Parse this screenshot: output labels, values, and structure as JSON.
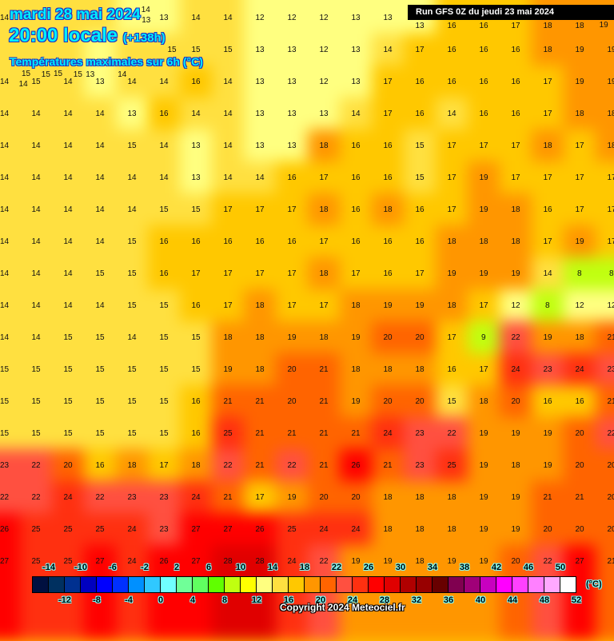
{
  "header": {
    "date": "mardi 28 mai 2024",
    "time": "20:00 locale",
    "lead": "(+138h)",
    "parameter": "Températures maximales sur 6h (°C)",
    "run": "Run GFS 0Z du jeudi 23 mai 2024"
  },
  "map": {
    "unit": "°C",
    "temperature_grid": [
      [
        14,
        15,
        15,
        14,
        13,
        13,
        14,
        14,
        12,
        12,
        12,
        13,
        13,
        13,
        16,
        16,
        17,
        18,
        18,
        19
      ],
      [
        14,
        15,
        15,
        13,
        14,
        15,
        15,
        15,
        13,
        13,
        12,
        13,
        14,
        17,
        16,
        16,
        16,
        18,
        19,
        19
      ],
      [
        14,
        15,
        14,
        13,
        14,
        14,
        16,
        14,
        13,
        13,
        12,
        13,
        17,
        16,
        16,
        16,
        16,
        17,
        19,
        19
      ],
      [
        14,
        14,
        14,
        14,
        13,
        16,
        14,
        14,
        13,
        13,
        13,
        14,
        17,
        16,
        14,
        16,
        16,
        17,
        18,
        18
      ],
      [
        14,
        14,
        14,
        14,
        15,
        14,
        13,
        14,
        13,
        13,
        18,
        16,
        16,
        15,
        17,
        17,
        17,
        18,
        17,
        18
      ],
      [
        14,
        14,
        14,
        14,
        14,
        14,
        13,
        14,
        14,
        16,
        17,
        16,
        16,
        15,
        17,
        19,
        17,
        17,
        17,
        17
      ],
      [
        14,
        14,
        14,
        14,
        14,
        15,
        15,
        17,
        17,
        17,
        18,
        16,
        18,
        16,
        17,
        19,
        18,
        16,
        17,
        17
      ],
      [
        14,
        14,
        14,
        14,
        15,
        16,
        16,
        16,
        16,
        16,
        17,
        16,
        16,
        16,
        18,
        18,
        18,
        17,
        19,
        17
      ],
      [
        14,
        14,
        14,
        15,
        15,
        16,
        17,
        17,
        17,
        17,
        18,
        17,
        16,
        17,
        19,
        19,
        19,
        14,
        8,
        8
      ],
      [
        14,
        14,
        14,
        14,
        15,
        15,
        16,
        17,
        18,
        17,
        17,
        18,
        19,
        19,
        18,
        17,
        12,
        8,
        12,
        12
      ],
      [
        14,
        14,
        15,
        15,
        14,
        15,
        15,
        18,
        18,
        19,
        18,
        19,
        20,
        20,
        17,
        9,
        22,
        19,
        18,
        21
      ],
      [
        15,
        15,
        15,
        15,
        15,
        15,
        15,
        19,
        18,
        20,
        21,
        18,
        18,
        18,
        16,
        17,
        24,
        23,
        24,
        23
      ],
      [
        15,
        15,
        15,
        15,
        15,
        15,
        16,
        21,
        21,
        20,
        21,
        19,
        20,
        20,
        15,
        18,
        20,
        16,
        16,
        21
      ],
      [
        15,
        15,
        15,
        15,
        15,
        15,
        16,
        25,
        21,
        21,
        21,
        21,
        24,
        23,
        22,
        19,
        19,
        19,
        20,
        22
      ],
      [
        23,
        22,
        20,
        16,
        18,
        17,
        18,
        22,
        21,
        22,
        21,
        26,
        21,
        23,
        25,
        19,
        18,
        19,
        20,
        20
      ],
      [
        22,
        22,
        24,
        22,
        23,
        23,
        24,
        21,
        17,
        19,
        20,
        20,
        18,
        18,
        18,
        19,
        19,
        21,
        21,
        20
      ],
      [
        26,
        25,
        25,
        25,
        24,
        23,
        27,
        27,
        26,
        25,
        24,
        24,
        18,
        18,
        18,
        19,
        19,
        20,
        20,
        20
      ],
      [
        27,
        25,
        25,
        27,
        24,
        26,
        27,
        28,
        28,
        24,
        22,
        19,
        19,
        18,
        19,
        19,
        20,
        22,
        27,
        21
      ]
    ]
  },
  "legend": {
    "colors": [
      "#001040",
      "#003060",
      "#003090",
      "#0000c0",
      "#0000ff",
      "#0030ff",
      "#0090ff",
      "#30c8ff",
      "#70ffff",
      "#70ff98",
      "#60ff60",
      "#60ff00",
      "#c0ff10",
      "#ffff00",
      "#ffff80",
      "#ffe040",
      "#ffc800",
      "#ff9600",
      "#ff6400",
      "#ff5040",
      "#ff3010",
      "#ff0000",
      "#e00000",
      "#b00000",
      "#980000",
      "#680000",
      "#800050",
      "#a00078",
      "#c800c0",
      "#ff00ff",
      "#ff40ff",
      "#ff80ff",
      "#ffa8ff",
      "#ffffff"
    ],
    "min": -16,
    "step": 2,
    "top_labels": [
      "-14",
      "-10",
      "-6",
      "-2",
      "2",
      "6",
      "10",
      "14",
      "18",
      "22",
      "26",
      "30",
      "34",
      "38",
      "42",
      "46",
      "50"
    ],
    "bottom_labels": [
      "-12",
      "-8",
      "-4",
      "0",
      "4",
      "8",
      "12",
      "16",
      "20",
      "24",
      "28",
      "32",
      "36",
      "40",
      "44",
      "48",
      "52"
    ],
    "unit_label": "(°C)"
  },
  "footer": {
    "copyright": "Copyright 2024 Meteociel.fr"
  }
}
